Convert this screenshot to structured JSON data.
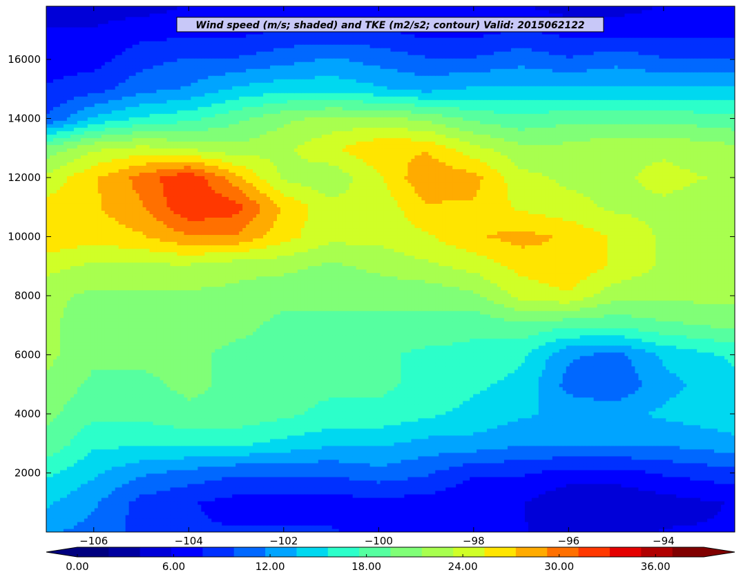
{
  "chart_data": {
    "type": "heatmap",
    "title": "Wind speed (m/s; shaded) and TKE (m2/s2; contour) Valid: 2015062122",
    "xlabel": "",
    "ylabel": "",
    "xlim": [
      -107.0,
      -92.5
    ],
    "ylim": [
      0,
      17800
    ],
    "x_ticks": [
      -106,
      -104,
      -102,
      -100,
      -98,
      -96,
      -94
    ],
    "x_tick_labels": [
      "−106",
      "−104",
      "−102",
      "−100",
      "−98",
      "−96",
      "−94"
    ],
    "y_ticks": [
      2000,
      4000,
      6000,
      8000,
      10000,
      12000,
      14000,
      16000
    ],
    "y_tick_labels": [
      "2000",
      "4000",
      "6000",
      "8000",
      "10000",
      "12000",
      "14000",
      "16000"
    ],
    "x": [
      -107.0,
      -106.0,
      -105.0,
      -104.0,
      -103.0,
      -102.0,
      -101.0,
      -100.0,
      -99.0,
      -98.0,
      -97.0,
      -96.0,
      -95.0,
      -94.0,
      -92.5
    ],
    "y": [
      0,
      1000,
      2000,
      3000,
      4000,
      5000,
      6000,
      7000,
      8000,
      9000,
      10000,
      11000,
      12000,
      13000,
      14000,
      15000,
      16000,
      17000,
      17800
    ],
    "z": [
      [
        12,
        11,
        9,
        8,
        8,
        8,
        8,
        7,
        7,
        7,
        6,
        5,
        5,
        6,
        6
      ],
      [
        14,
        12,
        9,
        8,
        7,
        7,
        7,
        7,
        7,
        6,
        6,
        4,
        4,
        5,
        6
      ],
      [
        16,
        14,
        12,
        11,
        10,
        10,
        10,
        11,
        10,
        8,
        8,
        7,
        7,
        8,
        9
      ],
      [
        19,
        16,
        16,
        16,
        16,
        15,
        14,
        14,
        13,
        13,
        12,
        12,
        12,
        12,
        13
      ],
      [
        20,
        18,
        18,
        19,
        19,
        18,
        17,
        17,
        16,
        15,
        14,
        13,
        13,
        14,
        15
      ],
      [
        21,
        19,
        19,
        20,
        19,
        18,
        18,
        18,
        17,
        16,
        15,
        11,
        10,
        13,
        15
      ],
      [
        22,
        20,
        20,
        20,
        19,
        19,
        19,
        18,
        17,
        17,
        16,
        12,
        11,
        14,
        16
      ],
      [
        22,
        20,
        20,
        20,
        20,
        19,
        19,
        19,
        19,
        18,
        19,
        18,
        18,
        19,
        20
      ],
      [
        22,
        21,
        21,
        21,
        21,
        20,
        20,
        20,
        20,
        21,
        24,
        25,
        22,
        22,
        22
      ],
      [
        24,
        23,
        23,
        23,
        22,
        22,
        21,
        22,
        23,
        24,
        26,
        27,
        25,
        23,
        22
      ],
      [
        27,
        26,
        27,
        29,
        29,
        26,
        24,
        24,
        25,
        27,
        28,
        27,
        25,
        23,
        22
      ],
      [
        26,
        27,
        29,
        33,
        32,
        27,
        24,
        24,
        27,
        27,
        25,
        24,
        23,
        23,
        22
      ],
      [
        24,
        27,
        30,
        33,
        28,
        23,
        22,
        25,
        29,
        28,
        24,
        23,
        23,
        24,
        23
      ],
      [
        20,
        23,
        24,
        23,
        22,
        23,
        25,
        27,
        27,
        24,
        22,
        22,
        23,
        23,
        22
      ],
      [
        10,
        14,
        16,
        17,
        19,
        21,
        22,
        22,
        21,
        19,
        18,
        19,
        19,
        19,
        18
      ],
      [
        8,
        9,
        11,
        12,
        14,
        15,
        15,
        14,
        13,
        14,
        14,
        14,
        14,
        14,
        14
      ],
      [
        7,
        7,
        9,
        10,
        10,
        11,
        12,
        11,
        10,
        10,
        11,
        10,
        11,
        10,
        10
      ],
      [
        6,
        6,
        7,
        7,
        7,
        8,
        8,
        8,
        7,
        7,
        8,
        7,
        7,
        7,
        7
      ],
      [
        5,
        5,
        5,
        6,
        6,
        6,
        6,
        6,
        6,
        6,
        6,
        5,
        5,
        6,
        6
      ]
    ],
    "levels": [
      0,
      1.5,
      3,
      4.5,
      6,
      7.5,
      9,
      10.5,
      12,
      13.5,
      15,
      16.5,
      18,
      19.5,
      21,
      22.5,
      24,
      25.5,
      27,
      28.5,
      30,
      31.5,
      33,
      34.5,
      36,
      37.5,
      39
    ],
    "colorbar": {
      "ticks": [
        0,
        6,
        12,
        18,
        24,
        30,
        36
      ],
      "tick_labels": [
        "0.00",
        "6.00",
        "12.00",
        "18.00",
        "24.00",
        "30.00",
        "36.00"
      ],
      "range": [
        0,
        39
      ],
      "extend": "both",
      "colors": [
        "#00007f",
        "#00009f",
        "#0000d8",
        "#0000ff",
        "#0030ff",
        "#0068ff",
        "#00a4ff",
        "#00d8f0",
        "#2cffca",
        "#56ffa0",
        "#80ff77",
        "#a8ff4f",
        "#d0ff27",
        "#ffe500",
        "#ffab00",
        "#ff7000",
        "#ff3800",
        "#e40000",
        "#b00000",
        "#800000"
      ],
      "under_color": "#00007f",
      "over_color": "#800000"
    },
    "grid": false
  }
}
